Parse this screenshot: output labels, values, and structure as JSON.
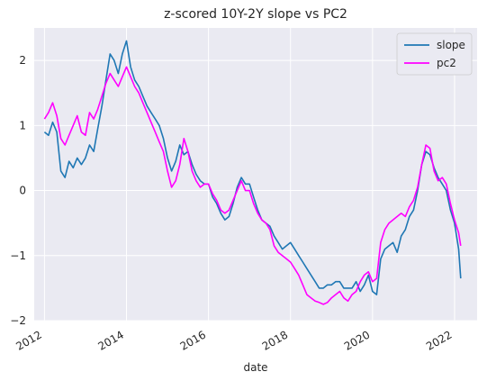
{
  "chart_data": {
    "type": "line",
    "title": "z-scored 10Y-2Y slope vs PC2",
    "xlabel": "date",
    "ylabel": "",
    "xlim": [
      2011.75,
      2022.55
    ],
    "ylim": [
      -2,
      2.5
    ],
    "yticks": [
      -2,
      -1,
      0,
      1,
      2
    ],
    "ytick_labels": [
      "−2",
      "−1",
      "0",
      "1",
      "2"
    ],
    "xticks": [
      2012,
      2014,
      2016,
      2018,
      2020,
      2022
    ],
    "xtick_labels": [
      "2012",
      "2014",
      "2016",
      "2018",
      "2020",
      "2022"
    ],
    "grid": true,
    "legend_position": "top-right",
    "background": "#eaeaf2",
    "series": [
      {
        "name": "slope",
        "color": "#1f77b4",
        "x": [
          2012.0,
          2012.1,
          2012.2,
          2012.3,
          2012.4,
          2012.5,
          2012.6,
          2012.7,
          2012.8,
          2012.9,
          2013.0,
          2013.1,
          2013.2,
          2013.3,
          2013.4,
          2013.5,
          2013.6,
          2013.7,
          2013.8,
          2013.9,
          2014.0,
          2014.1,
          2014.2,
          2014.3,
          2014.4,
          2014.5,
          2014.6,
          2014.7,
          2014.8,
          2014.9,
          2015.0,
          2015.1,
          2015.2,
          2015.3,
          2015.4,
          2015.5,
          2015.6,
          2015.7,
          2015.8,
          2015.9,
          2016.0,
          2016.1,
          2016.2,
          2016.3,
          2016.4,
          2016.5,
          2016.6,
          2016.7,
          2016.8,
          2016.9,
          2017.0,
          2017.1,
          2017.2,
          2017.3,
          2017.4,
          2017.5,
          2017.6,
          2017.7,
          2017.8,
          2017.9,
          2018.0,
          2018.1,
          2018.2,
          2018.3,
          2018.4,
          2018.5,
          2018.6,
          2018.7,
          2018.8,
          2018.9,
          2019.0,
          2019.1,
          2019.2,
          2019.3,
          2019.4,
          2019.5,
          2019.6,
          2019.7,
          2019.8,
          2019.9,
          2020.0,
          2020.1,
          2020.2,
          2020.3,
          2020.4,
          2020.5,
          2020.6,
          2020.7,
          2020.8,
          2020.9,
          2021.0,
          2021.1,
          2021.2,
          2021.3,
          2021.4,
          2021.5,
          2021.6,
          2021.7,
          2021.8,
          2021.9,
          2022.0,
          2022.1,
          2022.15
        ],
        "y": [
          0.9,
          0.85,
          1.05,
          0.9,
          0.3,
          0.2,
          0.45,
          0.35,
          0.5,
          0.4,
          0.5,
          0.7,
          0.6,
          0.95,
          1.3,
          1.7,
          2.1,
          2.0,
          1.8,
          2.1,
          2.3,
          1.9,
          1.7,
          1.6,
          1.45,
          1.3,
          1.2,
          1.1,
          1.0,
          0.8,
          0.5,
          0.3,
          0.45,
          0.7,
          0.55,
          0.6,
          0.4,
          0.25,
          0.15,
          0.1,
          0.1,
          -0.1,
          -0.2,
          -0.35,
          -0.45,
          -0.4,
          -0.2,
          0.05,
          0.2,
          0.1,
          0.1,
          -0.1,
          -0.3,
          -0.45,
          -0.5,
          -0.55,
          -0.7,
          -0.8,
          -0.9,
          -0.85,
          -0.8,
          -0.9,
          -1.0,
          -1.1,
          -1.2,
          -1.3,
          -1.4,
          -1.5,
          -1.5,
          -1.45,
          -1.45,
          -1.4,
          -1.4,
          -1.5,
          -1.5,
          -1.5,
          -1.4,
          -1.55,
          -1.45,
          -1.3,
          -1.55,
          -1.6,
          -1.05,
          -0.9,
          -0.85,
          -0.8,
          -0.95,
          -0.7,
          -0.6,
          -0.4,
          -0.3,
          0.0,
          0.4,
          0.6,
          0.55,
          0.35,
          0.2,
          0.1,
          0.0,
          -0.3,
          -0.5,
          -0.9,
          -1.35
        ]
      },
      {
        "name": "pc2",
        "color": "#ff00ff",
        "x": [
          2012.0,
          2012.1,
          2012.2,
          2012.3,
          2012.4,
          2012.5,
          2012.6,
          2012.7,
          2012.8,
          2012.9,
          2013.0,
          2013.1,
          2013.2,
          2013.3,
          2013.4,
          2013.5,
          2013.6,
          2013.7,
          2013.8,
          2013.9,
          2014.0,
          2014.1,
          2014.2,
          2014.3,
          2014.4,
          2014.5,
          2014.6,
          2014.7,
          2014.8,
          2014.9,
          2015.0,
          2015.1,
          2015.2,
          2015.3,
          2015.4,
          2015.5,
          2015.6,
          2015.7,
          2015.8,
          2015.9,
          2016.0,
          2016.1,
          2016.2,
          2016.3,
          2016.4,
          2016.5,
          2016.6,
          2016.7,
          2016.8,
          2016.9,
          2017.0,
          2017.1,
          2017.2,
          2017.3,
          2017.4,
          2017.5,
          2017.6,
          2017.7,
          2017.8,
          2017.9,
          2018.0,
          2018.1,
          2018.2,
          2018.3,
          2018.4,
          2018.5,
          2018.6,
          2018.7,
          2018.8,
          2018.9,
          2019.0,
          2019.1,
          2019.2,
          2019.3,
          2019.4,
          2019.5,
          2019.6,
          2019.7,
          2019.8,
          2019.9,
          2020.0,
          2020.1,
          2020.2,
          2020.3,
          2020.4,
          2020.5,
          2020.6,
          2020.7,
          2020.8,
          2020.9,
          2021.0,
          2021.1,
          2021.2,
          2021.3,
          2021.4,
          2021.5,
          2021.6,
          2021.7,
          2021.8,
          2021.9,
          2022.0,
          2022.1,
          2022.15
        ],
        "y": [
          1.1,
          1.2,
          1.35,
          1.15,
          0.8,
          0.7,
          0.85,
          1.0,
          1.15,
          0.9,
          0.85,
          1.2,
          1.1,
          1.25,
          1.45,
          1.65,
          1.8,
          1.7,
          1.6,
          1.75,
          1.9,
          1.75,
          1.6,
          1.5,
          1.35,
          1.2,
          1.05,
          0.9,
          0.75,
          0.6,
          0.3,
          0.05,
          0.15,
          0.4,
          0.8,
          0.6,
          0.3,
          0.15,
          0.05,
          0.1,
          0.1,
          -0.05,
          -0.15,
          -0.3,
          -0.35,
          -0.3,
          -0.15,
          0.0,
          0.15,
          0.0,
          0.0,
          -0.2,
          -0.35,
          -0.45,
          -0.5,
          -0.6,
          -0.85,
          -0.95,
          -1.0,
          -1.05,
          -1.1,
          -1.2,
          -1.3,
          -1.45,
          -1.6,
          -1.65,
          -1.7,
          -1.72,
          -1.75,
          -1.72,
          -1.65,
          -1.6,
          -1.55,
          -1.65,
          -1.7,
          -1.6,
          -1.55,
          -1.4,
          -1.3,
          -1.25,
          -1.4,
          -1.35,
          -0.8,
          -0.6,
          -0.5,
          -0.45,
          -0.4,
          -0.35,
          -0.4,
          -0.25,
          -0.15,
          0.05,
          0.4,
          0.7,
          0.65,
          0.3,
          0.15,
          0.2,
          0.1,
          -0.2,
          -0.45,
          -0.65,
          -0.85
        ]
      }
    ]
  }
}
